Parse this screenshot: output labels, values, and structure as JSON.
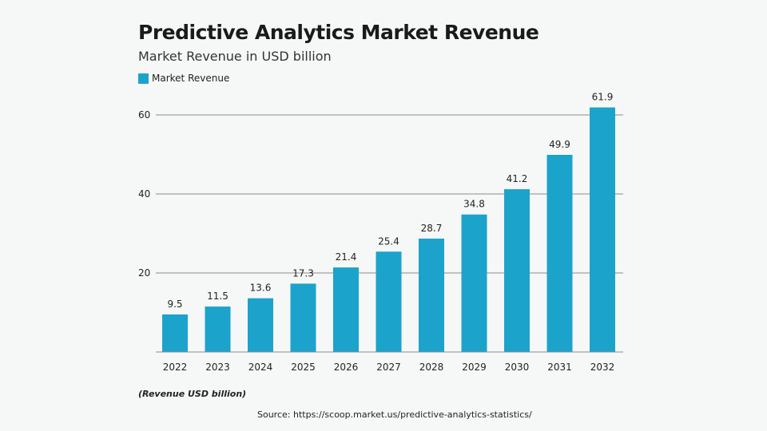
{
  "chart_data": {
    "type": "bar",
    "title": "Predictive Analytics Market Revenue",
    "subtitle": "Market Revenue in USD billion",
    "categories": [
      "2022",
      "2023",
      "2024",
      "2025",
      "2026",
      "2027",
      "2028",
      "2029",
      "2030",
      "2031",
      "2032"
    ],
    "series": [
      {
        "name": "Market Revenue",
        "values": [
          9.5,
          11.5,
          13.6,
          17.3,
          21.4,
          25.4,
          28.7,
          34.8,
          41.2,
          49.9,
          61.9
        ],
        "color": "#1ba3cc"
      }
    ],
    "yticks": [
      20,
      40,
      60
    ],
    "ylim": [
      0,
      62
    ],
    "grid": true,
    "legend": "top-left",
    "note": "(Revenue USD billion)",
    "source": "Source: https://scoop.market.us/predictive-analytics-statistics/"
  }
}
